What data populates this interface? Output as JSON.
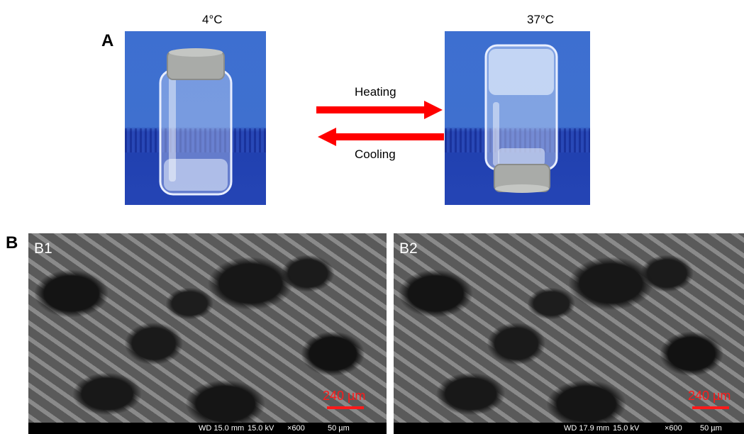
{
  "panel_a": {
    "letter": "A",
    "left_label": "4°C",
    "right_label": "37°C",
    "heating_label": "Heating",
    "cooling_label": "Cooling",
    "arrow_color": "#ff0000"
  },
  "panel_b": {
    "letter": "B",
    "images": [
      {
        "id": "B1",
        "scale_label": "240 µm",
        "wd": "WD 15.0 mm",
        "kv": "15.0 kV",
        "mag": "×600",
        "bar_label": "50 µm"
      },
      {
        "id": "B2",
        "scale_label": "240 µm",
        "wd": "WD 17.9 mm",
        "kv": "15.0 kV",
        "mag": "×600",
        "bar_label": "50 µm"
      }
    ]
  }
}
